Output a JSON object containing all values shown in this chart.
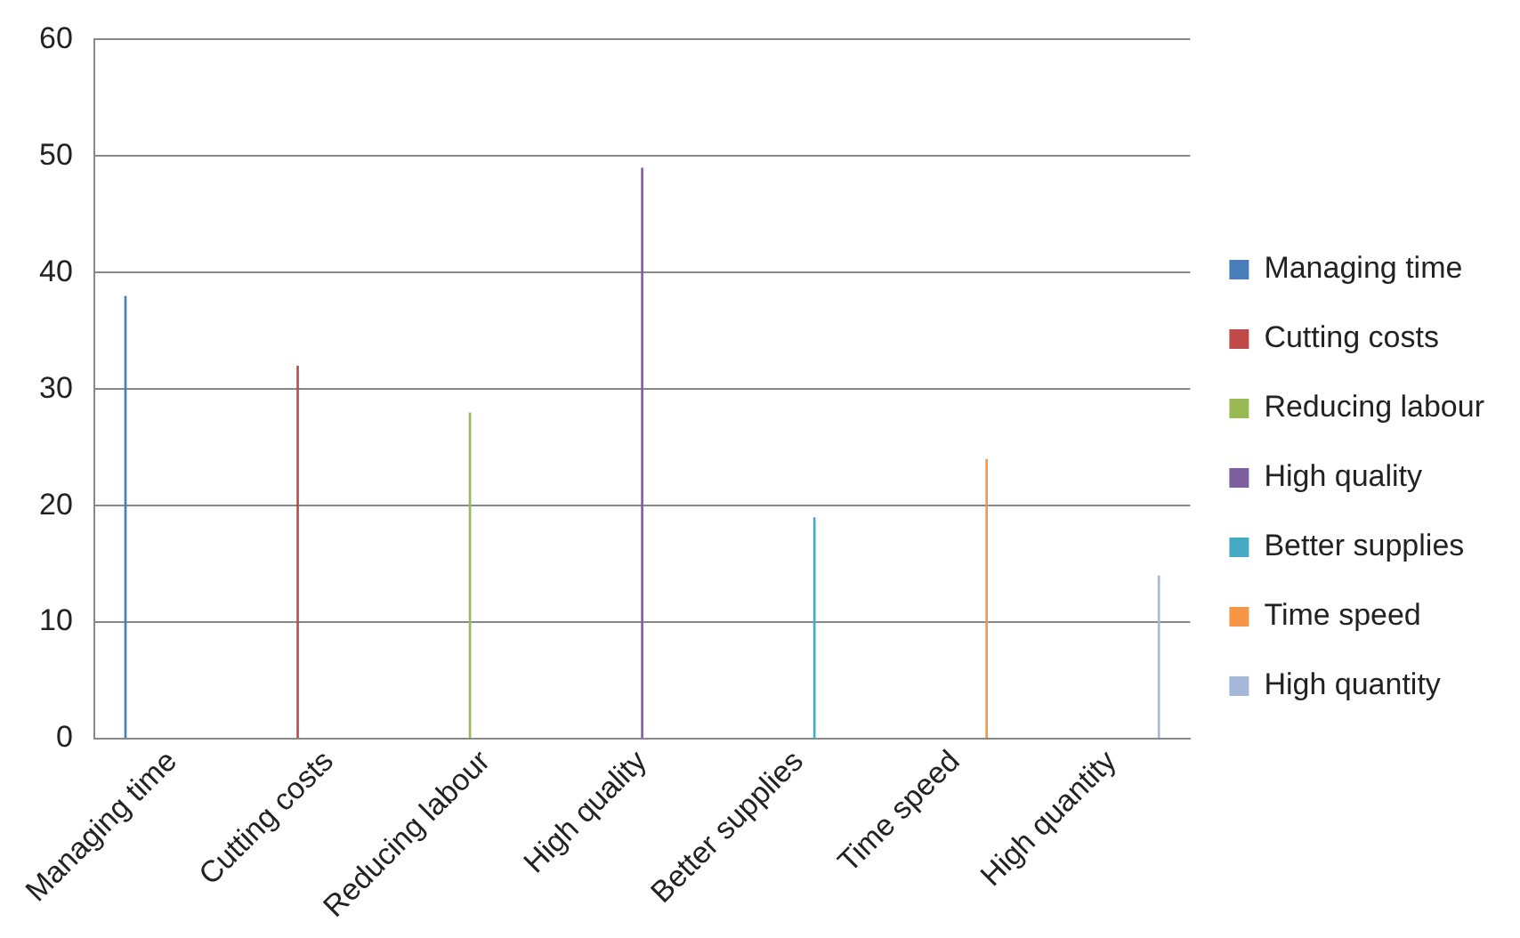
{
  "chart_data": {
    "type": "bar",
    "categories": [
      "Managing time",
      "Cutting costs",
      "Reducing labour",
      "High quality",
      "Better supplies",
      "Time speed",
      "High quantity"
    ],
    "series": [
      {
        "name": "Managing time",
        "color": "#4a7ebb",
        "values": [
          38,
          null,
          null,
          null,
          null,
          null,
          null
        ]
      },
      {
        "name": "Cutting costs",
        "color": "#be4b48",
        "values": [
          null,
          32,
          null,
          null,
          null,
          null,
          null
        ]
      },
      {
        "name": "Reducing labour",
        "color": "#98b954",
        "values": [
          null,
          null,
          28,
          null,
          null,
          null,
          null
        ]
      },
      {
        "name": "High quality",
        "color": "#7d60a0",
        "values": [
          null,
          null,
          null,
          49,
          null,
          null,
          null
        ]
      },
      {
        "name": "Better supplies",
        "color": "#46aac5",
        "values": [
          null,
          null,
          null,
          null,
          19,
          null,
          null
        ]
      },
      {
        "name": "Time speed",
        "color": "#f79646",
        "values": [
          null,
          null,
          null,
          null,
          null,
          24,
          null
        ]
      },
      {
        "name": "High quantity",
        "color": "#a5b8d9",
        "values": [
          null,
          null,
          null,
          null,
          null,
          null,
          14
        ]
      }
    ],
    "ylim": [
      0,
      60
    ],
    "yticks": [
      0,
      10,
      20,
      30,
      40,
      50,
      60
    ],
    "grid": "y",
    "legend": "right"
  }
}
